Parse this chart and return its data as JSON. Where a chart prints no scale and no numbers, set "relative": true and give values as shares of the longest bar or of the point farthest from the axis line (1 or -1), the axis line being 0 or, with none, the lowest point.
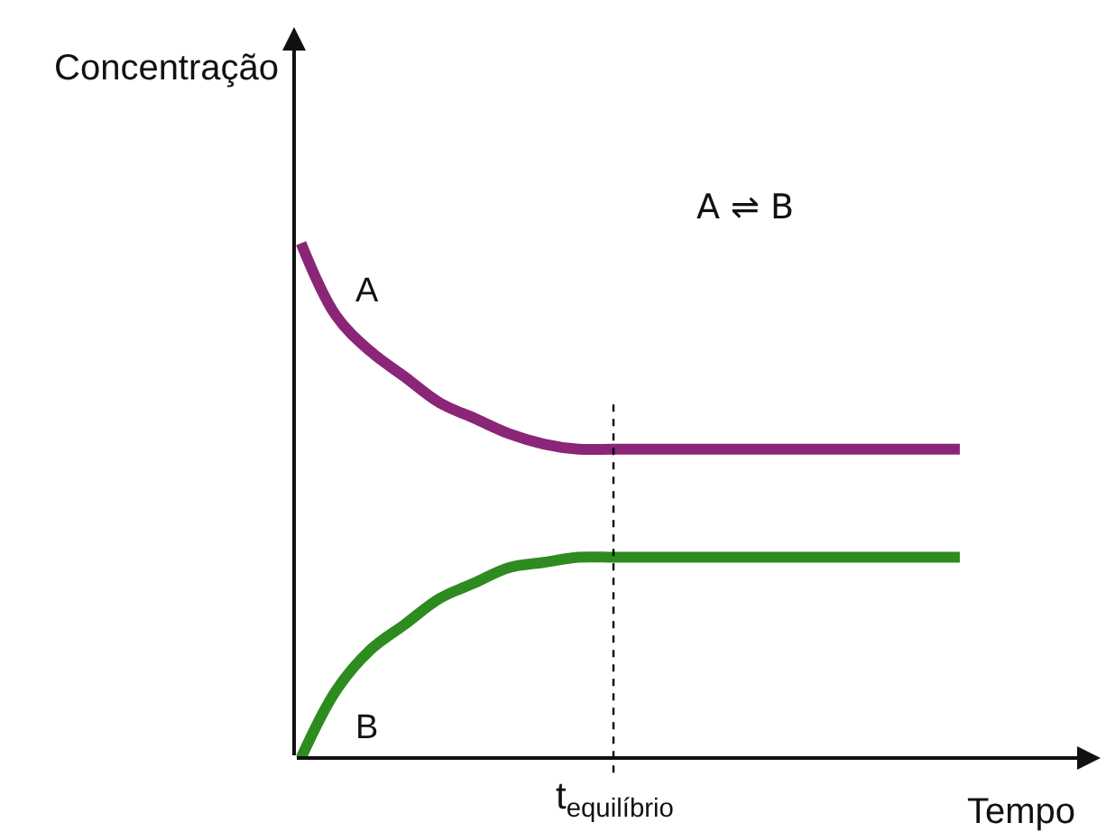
{
  "chart_data": {
    "type": "line",
    "relative": true,
    "xlabel": "Tempo",
    "ylabel": "Concentração",
    "categories": [
      null,
      null,
      null,
      null,
      null,
      null,
      null,
      null,
      null,
      null,
      null,
      null,
      null,
      null,
      null,
      null,
      null,
      null,
      null,
      null
    ],
    "series": [
      {
        "name": "A",
        "color": "#8b2577",
        "values": [
          1.0,
          0.86,
          0.79,
          0.74,
          0.69,
          0.66,
          0.63,
          0.61,
          0.6,
          0.6,
          0.6,
          0.6,
          0.6,
          0.6,
          0.6,
          0.6,
          0.6,
          0.6,
          0.6,
          0.6
        ]
      },
      {
        "name": "B",
        "color": "#2e8b1f",
        "values": [
          0.0,
          0.13,
          0.21,
          0.26,
          0.31,
          0.34,
          0.37,
          0.38,
          0.39,
          0.39,
          0.39,
          0.39,
          0.39,
          0.39,
          0.39,
          0.39,
          0.39,
          0.39,
          0.39,
          0.39
        ]
      }
    ],
    "annotations": [
      "A ⇌ B",
      "t$_{equilíbrio}$"
    ]
  }
}
